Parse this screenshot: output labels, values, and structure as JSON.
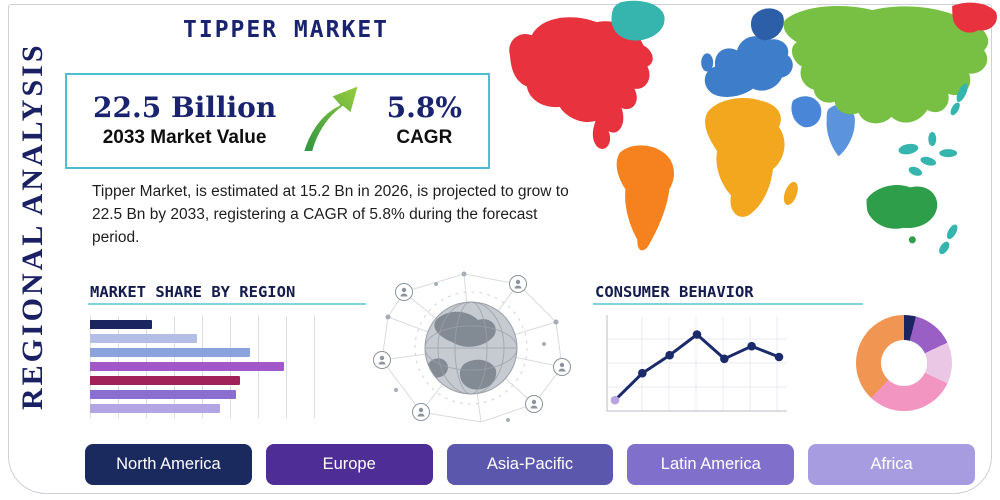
{
  "title": "TIPPER MARKET",
  "sidebar_label": "REGIONAL ANALYSIS",
  "stats": {
    "market_value": "22.5 Billion",
    "market_value_label": "2033 Market Value",
    "cagr_value": "5.8%",
    "cagr_label": "CAGR"
  },
  "description": "Tipper Market, is estimated at 15.2 Bn in 2026, is projected to grow to 22.5 Bn by 2033, registering a CAGR of 5.8% during the forecast period.",
  "sections": {
    "market_share_heading": "MARKET SHARE BY REGION",
    "consumer_behavior_heading": "CONSUMER BEHAVIOR"
  },
  "accent_color": "#4cc0d0",
  "title_color": "#1a2370",
  "regions": [
    {
      "label": "North America",
      "color": "#1b2a5e"
    },
    {
      "label": "Europe",
      "color": "#4f2d96"
    },
    {
      "label": "Asia-Pacific",
      "color": "#5a57ad"
    },
    {
      "label": "Latin America",
      "color": "#8070cc"
    },
    {
      "label": "Africa",
      "color": "#a89ce0"
    }
  ],
  "map_colors": {
    "north_america": "#e8333f",
    "greenland": "#35b5ae",
    "south_america": "#f5821f",
    "europe": "#3e7dca",
    "scandinavia": "#2c5fa8",
    "africa": "#f2a71f",
    "middle_east": "#4a86d8",
    "india": "#5b93dd",
    "asia": "#77c043",
    "east_russia": "#e8333f",
    "islands": "#35b5ae",
    "australia": "#2f9e4a"
  },
  "chart_data": [
    {
      "type": "bar",
      "title": "MARKET SHARE BY REGION",
      "orientation": "horizontal",
      "categories": [
        "region-1",
        "region-2",
        "region-3",
        "region-4",
        "region-5",
        "region-6",
        "region-7"
      ],
      "values": [
        27,
        47,
        70,
        85,
        66,
        64,
        57
      ],
      "colors": [
        "#1b2560",
        "#b4bde6",
        "#8ba3dd",
        "#a258c8",
        "#a02258",
        "#8a6fd0",
        "#b3a5e3"
      ],
      "xlim": [
        0,
        100
      ],
      "grid": "vertical",
      "note": "no numeric axis labels visible"
    },
    {
      "type": "line",
      "title": "CONSUMER BEHAVIOR",
      "x": [
        1,
        2,
        3,
        4,
        5,
        6,
        7
      ],
      "values": [
        12,
        42,
        62,
        85,
        58,
        72,
        60
      ],
      "ylim": [
        0,
        100
      ],
      "line_color": "#1b2a6b",
      "first_point_color": "#b8a5e0",
      "grid": "light",
      "note": "no numeric axis labels visible"
    },
    {
      "type": "pie",
      "donut": true,
      "slices": [
        {
          "label": "navy-slice",
          "value": 4,
          "color": "#1b2560"
        },
        {
          "label": "violet-slice",
          "value": 14,
          "color": "#9a5fc5"
        },
        {
          "label": "lavender-slice",
          "value": 14,
          "color": "#e9c7e5"
        },
        {
          "label": "pink-slice",
          "value": 30,
          "color": "#f295c0"
        },
        {
          "label": "orange-slice",
          "value": 38,
          "color": "#f09552"
        }
      ]
    }
  ]
}
